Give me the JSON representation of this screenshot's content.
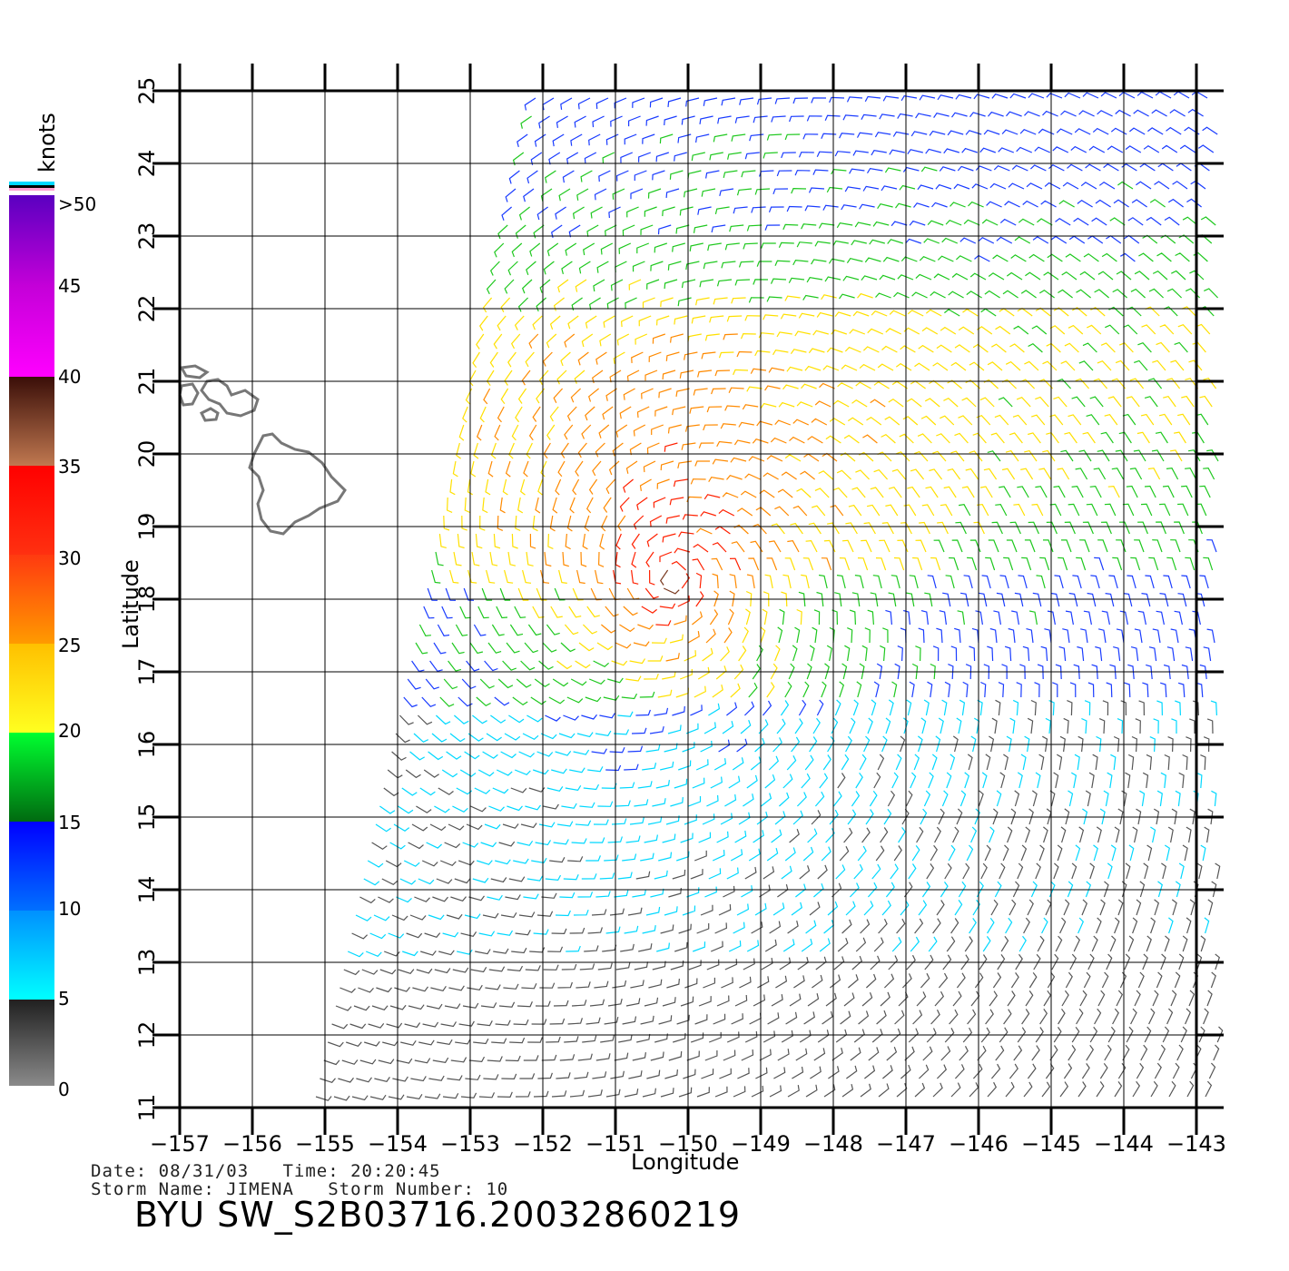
{
  "legend": {
    "unit_label": "knots",
    "stops": [
      {
        "label": ">50",
        "value": 50
      },
      {
        "label": "45",
        "value": 45
      },
      {
        "label": "40",
        "value": 40
      },
      {
        "label": "35",
        "value": 35
      },
      {
        "label": "30",
        "value": 30
      },
      {
        "label": "25",
        "value": 25
      },
      {
        "label": "20",
        "value": 20
      },
      {
        "label": "15",
        "value": 15
      },
      {
        "label": "10",
        "value": 10
      },
      {
        "label": "5",
        "value": 5
      },
      {
        "label": "0",
        "value": 0
      }
    ],
    "colors": {
      "0-5": "#555555",
      "5-10": "#00d8ff",
      "10-15": "#1a3cff",
      "15-20": "#1ec81e",
      "20-25": "#ffe000",
      "25-30": "#ff8a00",
      "30-35": "#ff2000",
      "35-40": "#7a3a20",
      "40-45": "#ff00ff",
      "45-50": "#8a00c8"
    }
  },
  "axes": {
    "xlabel": "Longitude",
    "ylabel": "Latitude",
    "x_ticks": [
      "−157",
      "−156",
      "−155",
      "−154",
      "−153",
      "−152",
      "−151",
      "−150",
      "−149",
      "−148",
      "−147",
      "−146",
      "−145",
      "−144",
      "−143"
    ],
    "y_ticks": [
      "11",
      "12",
      "13",
      "14",
      "15",
      "16",
      "17",
      "18",
      "19",
      "20",
      "21",
      "22",
      "23",
      "24",
      "25"
    ],
    "lon_range": [
      -157,
      -143
    ],
    "lat_range": [
      11,
      25
    ]
  },
  "info": {
    "date_line": "Date: 08/31/03   Time: 20:20:45",
    "storm_line": "Storm Name: JIMENA   Storm Number: 10",
    "product_title": "BYU SW_S2B03716.20032860219"
  },
  "storm_center": {
    "lon": -150.2,
    "lat": 18.3
  }
}
